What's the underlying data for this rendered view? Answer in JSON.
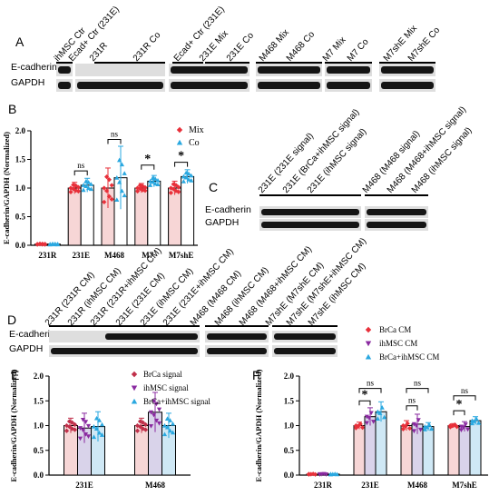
{
  "panels": {
    "A": "A",
    "B": "B",
    "C": "C",
    "D": "D",
    "E": "E",
    "F": "F"
  },
  "blotA": {
    "lanes": [
      "ihMSC Ctr",
      "Ecad+ Ctr (231E)",
      "231R",
      "231R Co",
      "Ecad+ Ctr (231E)",
      "231E Mix",
      "231E Co",
      "M468 Mix",
      "M468 Co",
      "M7 Mix",
      "M7 Co",
      "M7shE Mix",
      "M7shE Co"
    ],
    "rows": [
      "E-cadherin",
      "GAPDH"
    ]
  },
  "blotC": {
    "lanes": [
      "231E (231E signal)",
      "231E (BrCa+ihMSC signal)",
      "231E (ihMSC signal)",
      "M468 (M468 signal)",
      "M468 (M468+ihMSC signal)",
      "M468 (ihMSC signal)"
    ],
    "rows": [
      "E-cadherin",
      "GAPDH"
    ]
  },
  "blotD": {
    "lanes": [
      "231R (231R CM)",
      "231R (ihMSC CM)",
      "231R (231R+ihMSC CM)",
      "231E (231E CM)",
      "231E (ihMSC CM)",
      "231E (231E+ihMSC CM)",
      "M468 (M468 CM)",
      "M468 (ihMSC CM)",
      "M468 (M468+ihMSC CM)",
      "M7shE (M7shE CM)",
      "M7shE (M7shE+ihMSC CM)",
      "M7shE (ihMSC CM)"
    ],
    "rows": [
      "E-cadherin",
      "GAPDH"
    ]
  },
  "chart_data": [
    {
      "id": "B",
      "type": "bar",
      "ylabel": "E-cadherin/GAPDH (Normalized)",
      "ylim": [
        0,
        2.0
      ],
      "yticks": [
        "0.0",
        "0.5",
        "1.0",
        "1.5",
        "2.0"
      ],
      "categories": [
        "231R",
        "231E",
        "M468",
        "M7",
        "M7shE"
      ],
      "series": [
        {
          "name": "Mix",
          "color": "#e8303a",
          "fill": "#f7d6d6",
          "values": [
            0.02,
            1.0,
            1.0,
            1.0,
            1.0
          ],
          "err": [
            0.01,
            0.1,
            0.35,
            0.08,
            0.12
          ]
        },
        {
          "name": "Co",
          "color": "#2aa8e0",
          "fill": "#ffffff",
          "values": [
            0.02,
            1.05,
            1.18,
            1.12,
            1.2
          ],
          "err": [
            0.01,
            0.12,
            0.55,
            0.1,
            0.12
          ]
        }
      ],
      "annotations": [
        "ns",
        "ns",
        "*",
        "*"
      ],
      "legend": "top-right"
    },
    {
      "id": "E",
      "type": "bar",
      "ylabel": "E-cadherin/GAPDH (Normalized)",
      "ylim": [
        0,
        2.0
      ],
      "yticks": [
        "0.0",
        "0.5",
        "1.0",
        "1.5",
        "2.0"
      ],
      "categories": [
        "231E",
        "M468"
      ],
      "series": [
        {
          "name": "BrCa signal",
          "color": "#c0304a",
          "fill": "#f7d6d6",
          "values": [
            1.0,
            1.0
          ],
          "err": [
            0.15,
            0.15
          ]
        },
        {
          "name": "ihMSC signal",
          "color": "#8a2aa0",
          "fill": "#d9d3ea",
          "values": [
            0.95,
            1.27
          ],
          "err": [
            0.3,
            0.4
          ]
        },
        {
          "name": "BrCa+ihMSC signal",
          "color": "#2aa8e0",
          "fill": "#cfe8f5",
          "values": [
            0.98,
            1.0
          ],
          "err": [
            0.3,
            0.25
          ]
        }
      ],
      "legend": "top-right"
    },
    {
      "id": "F",
      "type": "bar",
      "ylabel": "E-cadherin/GAPDH (Normalized)",
      "ylim": [
        0,
        2.0
      ],
      "yticks": [
        "0.0",
        "0.5",
        "1.0",
        "1.5",
        "2.0"
      ],
      "categories": [
        "231R",
        "231E",
        "M468",
        "M7shE"
      ],
      "series": [
        {
          "name": "BrCa CM",
          "color": "#e8303a",
          "fill": "#f7d6d6",
          "values": [
            0.02,
            1.0,
            1.0,
            1.0
          ],
          "err": [
            0.01,
            0.07,
            0.1,
            0.04
          ]
        },
        {
          "name": "ihMSC CM",
          "color": "#8a2aa0",
          "fill": "#d9d3ea",
          "values": [
            0.02,
            1.18,
            1.03,
            0.98
          ],
          "err": [
            0.01,
            0.18,
            0.2,
            0.1
          ]
        },
        {
          "name": "BrCa+ihMSC CM",
          "color": "#2aa8e0",
          "fill": "#cfe8f5",
          "values": [
            0.02,
            1.28,
            0.98,
            1.1
          ],
          "err": [
            0.01,
            0.2,
            0.08,
            0.08
          ]
        }
      ],
      "annotations": [
        "ns",
        "*",
        "ns",
        "ns",
        "ns",
        "*"
      ],
      "legend": "top-right"
    }
  ]
}
